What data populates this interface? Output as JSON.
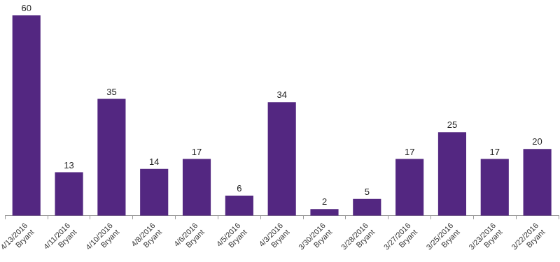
{
  "chart_data": {
    "type": "bar",
    "categories": [
      [
        "4/13/2016",
        "Bryant"
      ],
      [
        "4/11/2016",
        "Bryant"
      ],
      [
        "4/10/2016",
        "Bryant"
      ],
      [
        "4/8/2016",
        "Bryant"
      ],
      [
        "4/6/2016",
        "Bryant"
      ],
      [
        "4/5/2016",
        "Bryant"
      ],
      [
        "4/3/2016",
        "Bryant"
      ],
      [
        "3/30/2016",
        "Bryant"
      ],
      [
        "3/28/2016",
        "Bryant"
      ],
      [
        "3/27/2016",
        "Bryant"
      ],
      [
        "3/25/2016",
        "Bryant"
      ],
      [
        "3/23/2016",
        "Bryant"
      ],
      [
        "3/22/2016",
        "Bryant"
      ]
    ],
    "values": [
      60,
      13,
      35,
      14,
      17,
      6,
      34,
      2,
      5,
      17,
      25,
      17,
      20
    ],
    "color": "#532781",
    "ylim": [
      0,
      60
    ],
    "grid": false,
    "data_labels": true,
    "tick_labels": "x"
  }
}
